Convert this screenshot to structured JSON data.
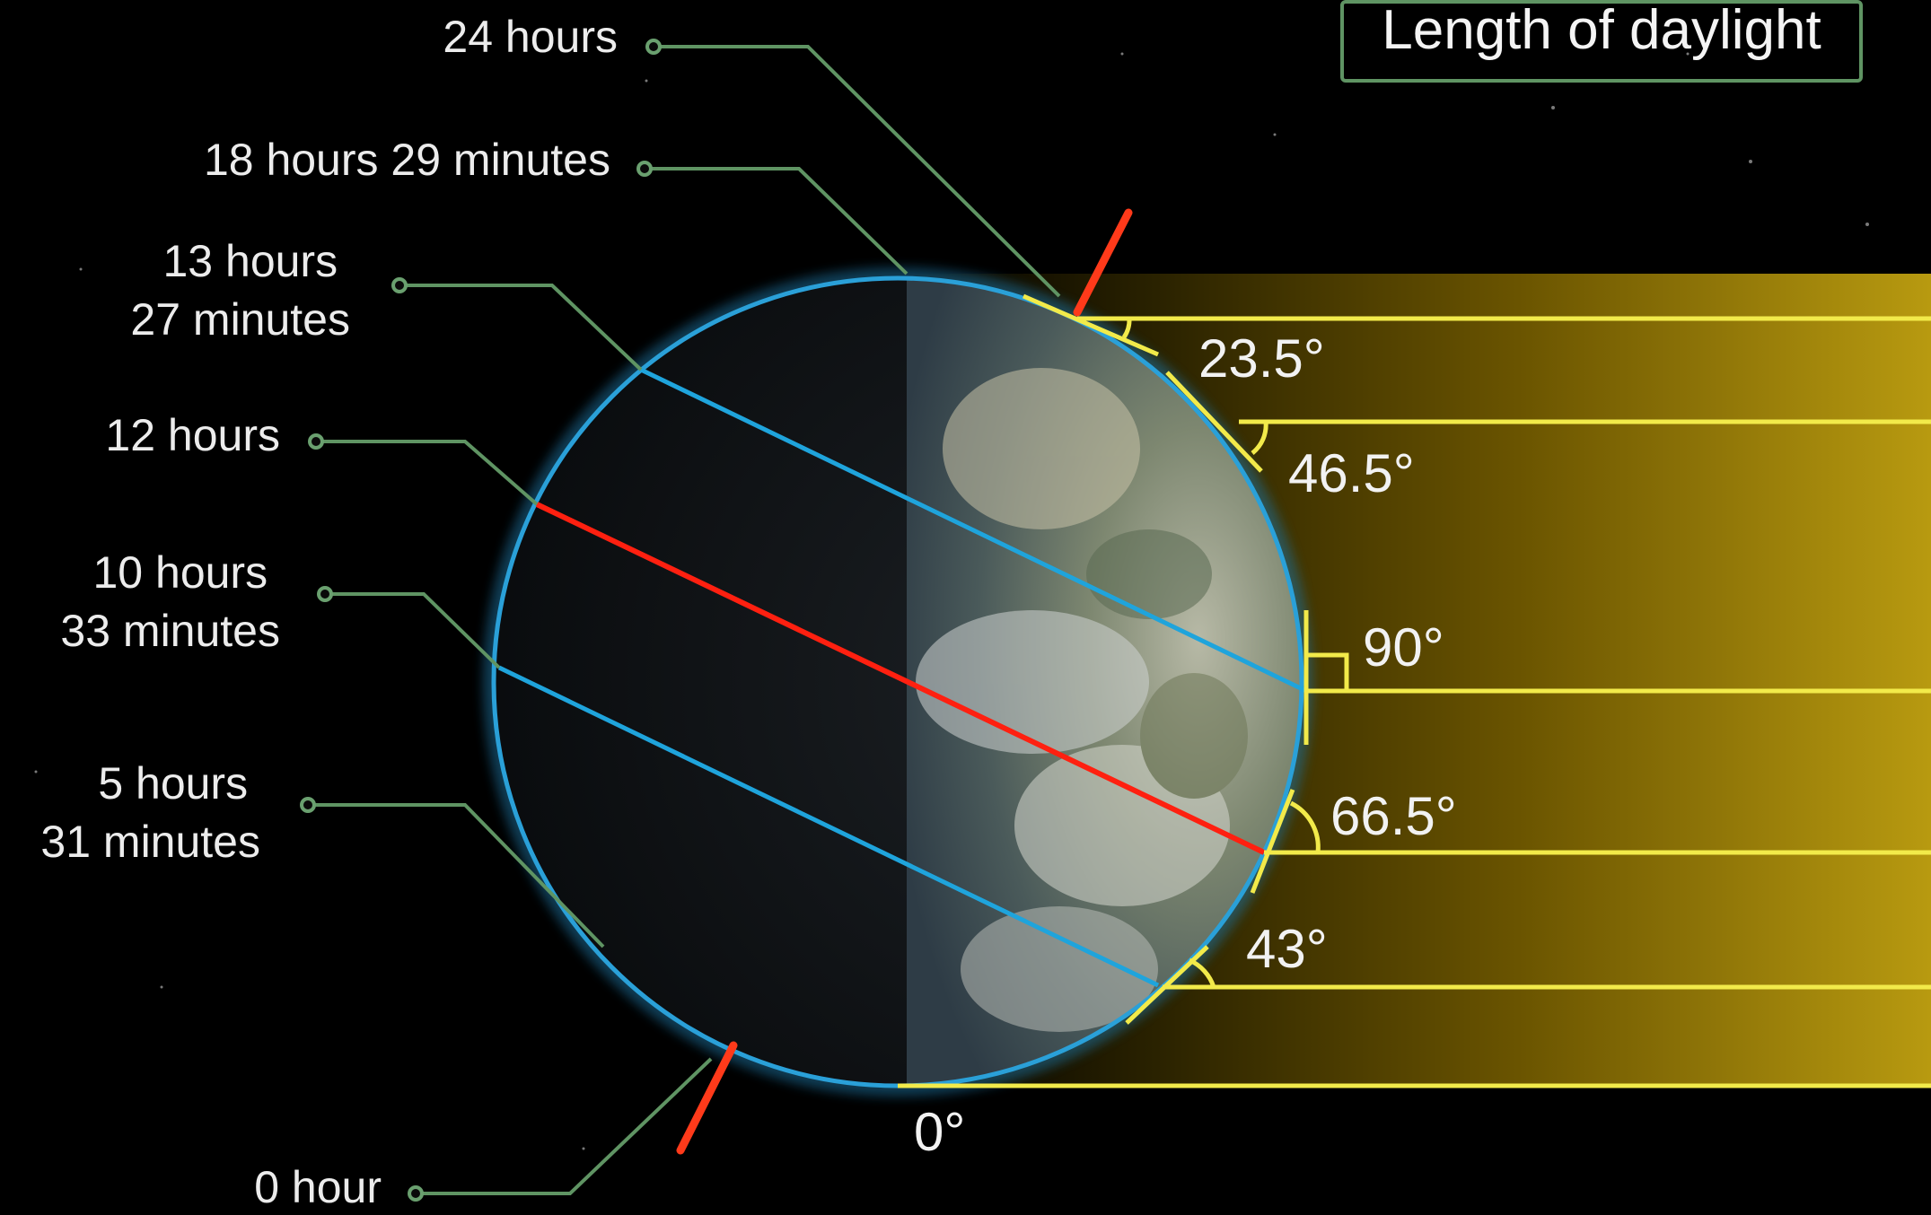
{
  "title": "Length of daylight",
  "colors": {
    "background": "#000000",
    "sunlight": "#e8c200",
    "ray": "#f2ea4a",
    "leader": "#5f9463",
    "latitude": "#1fa4dc",
    "axis": "#ff3a1a",
    "terminator_equator": "#ff2010"
  },
  "daylight_labels": [
    {
      "lines": [
        "24 hours"
      ]
    },
    {
      "lines": [
        "18 hours 29 minutes"
      ]
    },
    {
      "lines": [
        "13 hours",
        "27 minutes"
      ]
    },
    {
      "lines": [
        "12 hours"
      ]
    },
    {
      "lines": [
        "10 hours",
        "33 minutes"
      ]
    },
    {
      "lines": [
        "5 hours",
        "31 minutes"
      ]
    },
    {
      "lines": [
        "0 hour"
      ]
    }
  ],
  "sun_angles": [
    {
      "label": "23.5°",
      "value": 23.5
    },
    {
      "label": "46.5°",
      "value": 46.5
    },
    {
      "label": "90°",
      "value": 90
    },
    {
      "label": "66.5°",
      "value": 66.5
    },
    {
      "label": "43°",
      "value": 43
    },
    {
      "label": "0°",
      "value": 0
    }
  ]
}
